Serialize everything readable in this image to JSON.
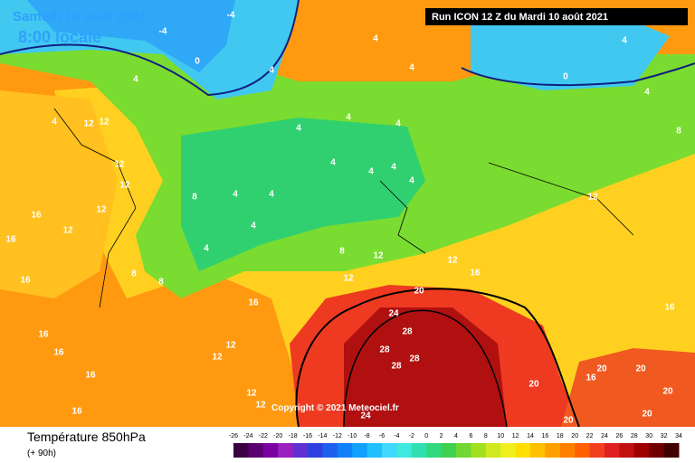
{
  "header": {
    "date": "Samedi 14 août 2021",
    "time": "8:00 locale",
    "run": "Run ICON 12 Z du Mardi 10 août 2021"
  },
  "footer": {
    "title": "Température 850hPa",
    "lead": "(+ 90h)",
    "copyright": "Copyright © 2021 Meteociel.fr"
  },
  "legend": {
    "ticks": [
      "-26",
      "-24",
      "-22",
      "-20",
      "-18",
      "-16",
      "-14",
      "-12",
      "-10",
      "-8",
      "-6",
      "-4",
      "-2",
      "0",
      "2",
      "4",
      "6",
      "8",
      "10",
      "12",
      "14",
      "16",
      "18",
      "20",
      "22",
      "24",
      "26",
      "28",
      "30",
      "32",
      "34"
    ],
    "colors": [
      "#3a0040",
      "#5a0070",
      "#7a00a0",
      "#9a20c0",
      "#6030d0",
      "#3040e0",
      "#2060f0",
      "#1080f8",
      "#10a0ff",
      "#20c0ff",
      "#40d8ff",
      "#40e8e0",
      "#30e0b0",
      "#30d880",
      "#40d050",
      "#70d830",
      "#a0e020",
      "#d0e820",
      "#f0f020",
      "#ffe000",
      "#ffc000",
      "#ffa000",
      "#ff8000",
      "#ff6000",
      "#f04020",
      "#e02020",
      "#c01010",
      "#a00000",
      "#700000",
      "#400000"
    ]
  },
  "contour_labels": [
    "-4",
    "-4",
    "0",
    "4",
    "4",
    "4",
    "4",
    "0",
    "4",
    "4",
    "4",
    "12",
    "12",
    "12",
    "12",
    "12",
    "12",
    "16",
    "16",
    "16",
    "16",
    "16",
    "16",
    "16",
    "4",
    "4",
    "4",
    "4",
    "4",
    "4",
    "4",
    "8",
    "4",
    "4",
    "4",
    "4",
    "8",
    "8",
    "8",
    "12",
    "12",
    "12",
    "16",
    "20",
    "12",
    "16",
    "8",
    "24",
    "28",
    "28",
    "28",
    "28",
    "20",
    "20",
    "20",
    "20",
    "20",
    "20",
    "16",
    "16",
    "12",
    "12",
    "12",
    "12",
    "24"
  ]
}
